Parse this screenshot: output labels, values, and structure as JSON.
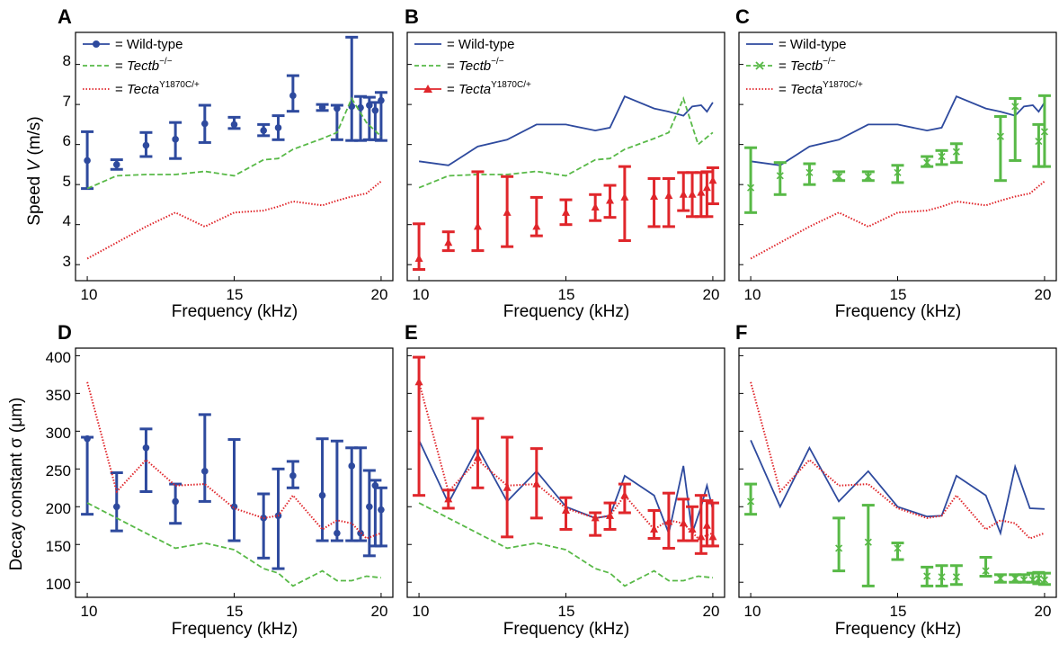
{
  "colors": {
    "wild_type": "#2e4a9e",
    "tectb": "#58b947",
    "tecta": "#e0262b"
  },
  "legend": {
    "wild_type": "= Wild-type",
    "tectb_prefix": "= ",
    "tectb_name": "Tectb",
    "tectb_sup": "−/−",
    "tecta_prefix": "= ",
    "tecta_name": "Tecta",
    "tecta_sup": "Y1870C/+"
  },
  "axes": {
    "x_label": "Frequency (kHz)",
    "y_label_speed_prefix": "Speed ",
    "y_label_speed_var": "V",
    "y_label_speed_unit": " (m/s)",
    "y_label_decay": "Decay constant σ (μm)",
    "x_ticks": [
      "10",
      "15",
      "20"
    ],
    "speed_ticks": [
      "3",
      "4",
      "5",
      "6",
      "7",
      "8"
    ],
    "decay_ticks": [
      "100",
      "150",
      "200",
      "250",
      "300",
      "350",
      "400"
    ]
  },
  "panels": {
    "A": "A",
    "B": "B",
    "C": "C",
    "D": "D",
    "E": "E",
    "F": "F"
  },
  "chart_data": [
    {
      "panel": "A",
      "type": "line",
      "xlabel": "Frequency (kHz)",
      "ylabel": "Speed V (m/s)",
      "xlim": [
        9.6,
        20.4
      ],
      "ylim": [
        2.6,
        8.8
      ],
      "series": [
        {
          "name": "Wild-type",
          "style": "errorbar",
          "x": [
            10,
            11,
            12,
            13,
            14,
            15,
            16,
            16.5,
            17,
            18,
            18.5,
            19,
            19.3,
            19.6,
            19.8,
            20
          ],
          "y": [
            5.6,
            5.5,
            5.98,
            6.13,
            6.52,
            6.5,
            6.35,
            6.42,
            7.22,
            6.93,
            6.9,
            6.95,
            6.92,
            6.98,
            6.85,
            7.1
          ],
          "lo": [
            4.9,
            5.38,
            5.7,
            5.65,
            6.05,
            6.4,
            6.22,
            6.12,
            6.83,
            6.85,
            6.12,
            6.1,
            6.1,
            6.12,
            6.12,
            6.1
          ],
          "hi": [
            6.32,
            5.62,
            6.3,
            6.55,
            6.98,
            6.68,
            6.5,
            6.72,
            7.72,
            7.0,
            6.98,
            8.68,
            7.2,
            7.18,
            7.05,
            7.3
          ]
        },
        {
          "name": "Tectb",
          "style": "dashed",
          "x": [
            10,
            11,
            12,
            13,
            14,
            15,
            16,
            16.5,
            17,
            18,
            18.5,
            19,
            19.5,
            20
          ],
          "y": [
            4.9,
            5.22,
            5.25,
            5.25,
            5.33,
            5.22,
            5.62,
            5.65,
            5.88,
            6.15,
            6.3,
            7.15,
            6.55,
            6.2
          ]
        },
        {
          "name": "Tecta",
          "style": "dotted",
          "x": [
            10,
            11,
            12,
            13,
            14,
            15,
            16,
            16.5,
            17,
            18,
            18.5,
            19,
            19.5,
            20
          ],
          "y": [
            3.15,
            3.55,
            3.95,
            4.3,
            3.95,
            4.3,
            4.35,
            4.45,
            4.58,
            4.48,
            4.6,
            4.7,
            4.78,
            5.08
          ]
        }
      ]
    },
    {
      "panel": "B",
      "type": "line",
      "xlabel": "Frequency (kHz)",
      "ylabel": "Speed V (m/s)",
      "xlim": [
        9.6,
        20.4
      ],
      "ylim": [
        2.6,
        8.8
      ],
      "series": [
        {
          "name": "Wild-type",
          "style": "solid",
          "x": [
            10,
            11,
            12,
            13,
            14,
            15,
            16,
            16.5,
            17,
            18,
            18.5,
            19,
            19.3,
            19.6,
            19.8,
            20
          ],
          "y": [
            5.58,
            5.48,
            5.95,
            6.12,
            6.5,
            6.5,
            6.35,
            6.42,
            7.2,
            6.9,
            6.82,
            6.72,
            6.95,
            6.98,
            6.82,
            7.05
          ]
        },
        {
          "name": "Tectb",
          "style": "dashed",
          "x": [
            10,
            11,
            12,
            13,
            14,
            15,
            16,
            16.5,
            17,
            18,
            18.5,
            19,
            19.5,
            20
          ],
          "y": [
            4.92,
            5.22,
            5.25,
            5.25,
            5.33,
            5.22,
            5.62,
            5.65,
            5.88,
            6.15,
            6.3,
            7.15,
            6.0,
            6.3
          ]
        },
        {
          "name": "Tecta",
          "style": "errorbar",
          "x": [
            10,
            11,
            12,
            13,
            14,
            15,
            16,
            16.5,
            17,
            18,
            18.5,
            19,
            19.3,
            19.6,
            19.8,
            20
          ],
          "y": [
            3.15,
            3.55,
            3.95,
            4.3,
            3.95,
            4.3,
            4.43,
            4.6,
            4.68,
            4.7,
            4.72,
            4.75,
            4.75,
            4.8,
            4.92,
            5.1
          ],
          "lo": [
            2.88,
            3.35,
            3.35,
            3.45,
            3.72,
            4.0,
            4.1,
            4.18,
            3.6,
            3.95,
            3.95,
            4.35,
            4.2,
            4.2,
            4.2,
            4.52
          ],
          "hi": [
            4.02,
            3.82,
            5.32,
            5.2,
            4.68,
            4.62,
            4.75,
            4.98,
            5.45,
            5.15,
            5.15,
            5.3,
            5.3,
            5.3,
            5.32,
            5.42
          ]
        }
      ]
    },
    {
      "panel": "C",
      "type": "line",
      "xlabel": "Frequency (kHz)",
      "ylabel": "Speed V (m/s)",
      "xlim": [
        9.6,
        20.4
      ],
      "ylim": [
        2.6,
        8.8
      ],
      "series": [
        {
          "name": "Wild-type",
          "style": "solid",
          "x": [
            10,
            11,
            12,
            13,
            14,
            15,
            16,
            16.5,
            17,
            18,
            18.5,
            19,
            19.3,
            19.6,
            19.8,
            20
          ],
          "y": [
            5.58,
            5.48,
            5.95,
            6.12,
            6.5,
            6.5,
            6.35,
            6.42,
            7.2,
            6.9,
            6.82,
            6.72,
            6.95,
            6.98,
            6.82,
            7.05
          ]
        },
        {
          "name": "Tectb",
          "style": "errorbar",
          "x": [
            10,
            11,
            12,
            13,
            14,
            15,
            16,
            16.5,
            17,
            18.5,
            19,
            19.8,
            20
          ],
          "y": [
            4.92,
            5.22,
            5.3,
            5.2,
            5.2,
            5.3,
            5.55,
            5.7,
            5.82,
            6.2,
            6.95,
            6.08,
            6.32
          ],
          "lo": [
            4.3,
            4.75,
            5.0,
            5.1,
            5.1,
            5.05,
            5.45,
            5.5,
            5.55,
            5.1,
            5.6,
            5.45,
            5.45
          ],
          "hi": [
            5.92,
            5.55,
            5.52,
            5.32,
            5.32,
            5.48,
            5.7,
            5.85,
            6.02,
            6.7,
            7.15,
            6.5,
            7.22
          ]
        },
        {
          "name": "Tecta",
          "style": "dotted",
          "x": [
            10,
            11,
            12,
            13,
            14,
            15,
            16,
            16.5,
            17,
            18,
            18.5,
            19,
            19.5,
            20
          ],
          "y": [
            3.15,
            3.55,
            3.95,
            4.3,
            3.95,
            4.3,
            4.35,
            4.45,
            4.58,
            4.48,
            4.6,
            4.7,
            4.78,
            5.08
          ]
        }
      ]
    },
    {
      "panel": "D",
      "type": "line",
      "xlabel": "Frequency (kHz)",
      "ylabel": "Decay constant σ (μm)",
      "xlim": [
        9.6,
        20.4
      ],
      "ylim": [
        80,
        410
      ],
      "series": [
        {
          "name": "Wild-type",
          "style": "errorbar",
          "x": [
            10,
            11,
            12,
            13,
            14,
            15,
            16,
            16.5,
            17,
            18,
            18.5,
            19,
            19.3,
            19.6,
            19.8,
            20
          ],
          "y": [
            290,
            200,
            278,
            207,
            247,
            200,
            185,
            188,
            241,
            215,
            165,
            254,
            165,
            200,
            228,
            196
          ],
          "lo": [
            190,
            168,
            220,
            178,
            207,
            155,
            132,
            118,
            225,
            155,
            155,
            155,
            155,
            135,
            148,
            148
          ],
          "hi": [
            292,
            245,
            303,
            230,
            322,
            289,
            217,
            250,
            260,
            290,
            287,
            278,
            278,
            248,
            235,
            225
          ]
        },
        {
          "name": "Tectb",
          "style": "dashed",
          "x": [
            10,
            11,
            12,
            13,
            14,
            15,
            16,
            16.5,
            17,
            18,
            18.5,
            19,
            19.5,
            20
          ],
          "y": [
            205,
            185,
            165,
            145,
            152,
            143,
            118,
            112,
            95,
            115,
            102,
            102,
            108,
            106
          ]
        },
        {
          "name": "Tecta",
          "style": "dotted",
          "x": [
            10,
            11,
            12,
            13,
            14,
            15,
            16,
            16.5,
            17,
            18,
            18.5,
            19,
            19.5,
            20
          ],
          "y": [
            365,
            220,
            262,
            228,
            230,
            198,
            185,
            188,
            215,
            170,
            182,
            178,
            158,
            165
          ]
        }
      ]
    },
    {
      "panel": "E",
      "type": "line",
      "xlabel": "Frequency (kHz)",
      "ylabel": "Decay constant σ (μm)",
      "xlim": [
        9.6,
        20.4
      ],
      "ylim": [
        80,
        410
      ],
      "series": [
        {
          "name": "Wild-type",
          "style": "solid",
          "x": [
            10,
            11,
            12,
            13,
            14,
            15,
            16,
            16.5,
            17,
            18,
            18.5,
            19,
            19.3,
            19.6,
            19.8,
            20
          ],
          "y": [
            288,
            205,
            278,
            207,
            247,
            200,
            185,
            188,
            241,
            215,
            165,
            254,
            165,
            200,
            228,
            196
          ]
        },
        {
          "name": "Tectb",
          "style": "dashed",
          "x": [
            10,
            11,
            12,
            13,
            14,
            15,
            16,
            16.5,
            17,
            18,
            18.5,
            19,
            19.5,
            20
          ],
          "y": [
            205,
            185,
            165,
            145,
            152,
            143,
            118,
            112,
            95,
            115,
            102,
            102,
            108,
            106
          ]
        },
        {
          "name": "Tecta",
          "style": "errorbar",
          "x": [
            10,
            11,
            12,
            13,
            14,
            15,
            16,
            16.5,
            17,
            18,
            18.5,
            19,
            19.3,
            19.6,
            19.8,
            20
          ],
          "y": [
            365,
            210,
            265,
            225,
            230,
            195,
            185,
            188,
            215,
            170,
            180,
            178,
            170,
            160,
            175,
            160
          ],
          "lo": [
            215,
            198,
            225,
            160,
            185,
            170,
            162,
            170,
            192,
            158,
            145,
            155,
            155,
            138,
            148,
            148
          ],
          "hi": [
            398,
            222,
            317,
            292,
            277,
            212,
            192,
            205,
            230,
            195,
            218,
            210,
            200,
            215,
            208,
            205
          ]
        },
        {
          "name": "Tecta-line",
          "style": "dotted",
          "x": [
            10,
            11,
            12,
            13,
            14,
            15,
            16,
            16.5,
            17,
            18,
            18.5,
            19,
            19.5,
            20
          ],
          "y": [
            365,
            220,
            262,
            228,
            230,
            198,
            185,
            188,
            215,
            170,
            182,
            178,
            158,
            165
          ]
        }
      ]
    },
    {
      "panel": "F",
      "type": "line",
      "xlabel": "Frequency (kHz)",
      "ylabel": "Decay constant σ (μm)",
      "xlim": [
        9.6,
        20.4
      ],
      "ylim": [
        80,
        410
      ],
      "series": [
        {
          "name": "Wild-type",
          "style": "solid",
          "x": [
            10,
            11,
            12,
            13,
            14,
            15,
            16,
            16.5,
            17,
            18,
            18.5,
            19,
            19.5,
            20
          ],
          "y": [
            288,
            200,
            278,
            207,
            247,
            200,
            187,
            188,
            241,
            215,
            165,
            253,
            198,
            197
          ]
        },
        {
          "name": "Tectb",
          "style": "errorbar",
          "x": [
            10,
            13,
            14,
            15,
            16,
            16.5,
            17,
            18,
            18.5,
            19,
            19.3,
            19.6,
            19.8,
            20
          ],
          "y": [
            207,
            145,
            153,
            145,
            108,
            107,
            107,
            115,
            105,
            105,
            103,
            103,
            105,
            103
          ],
          "lo": [
            190,
            115,
            95,
            130,
            95,
            95,
            97,
            108,
            100,
            100,
            100,
            100,
            98,
            97
          ],
          "hi": [
            230,
            185,
            202,
            152,
            120,
            122,
            122,
            133,
            110,
            110,
            110,
            112,
            113,
            112
          ]
        },
        {
          "name": "Tecta",
          "style": "dotted",
          "x": [
            10,
            11,
            12,
            13,
            14,
            15,
            16,
            16.5,
            17,
            18,
            18.5,
            19,
            19.5,
            20
          ],
          "y": [
            365,
            220,
            262,
            228,
            230,
            198,
            185,
            188,
            215,
            170,
            182,
            178,
            158,
            165
          ]
        }
      ]
    }
  ]
}
